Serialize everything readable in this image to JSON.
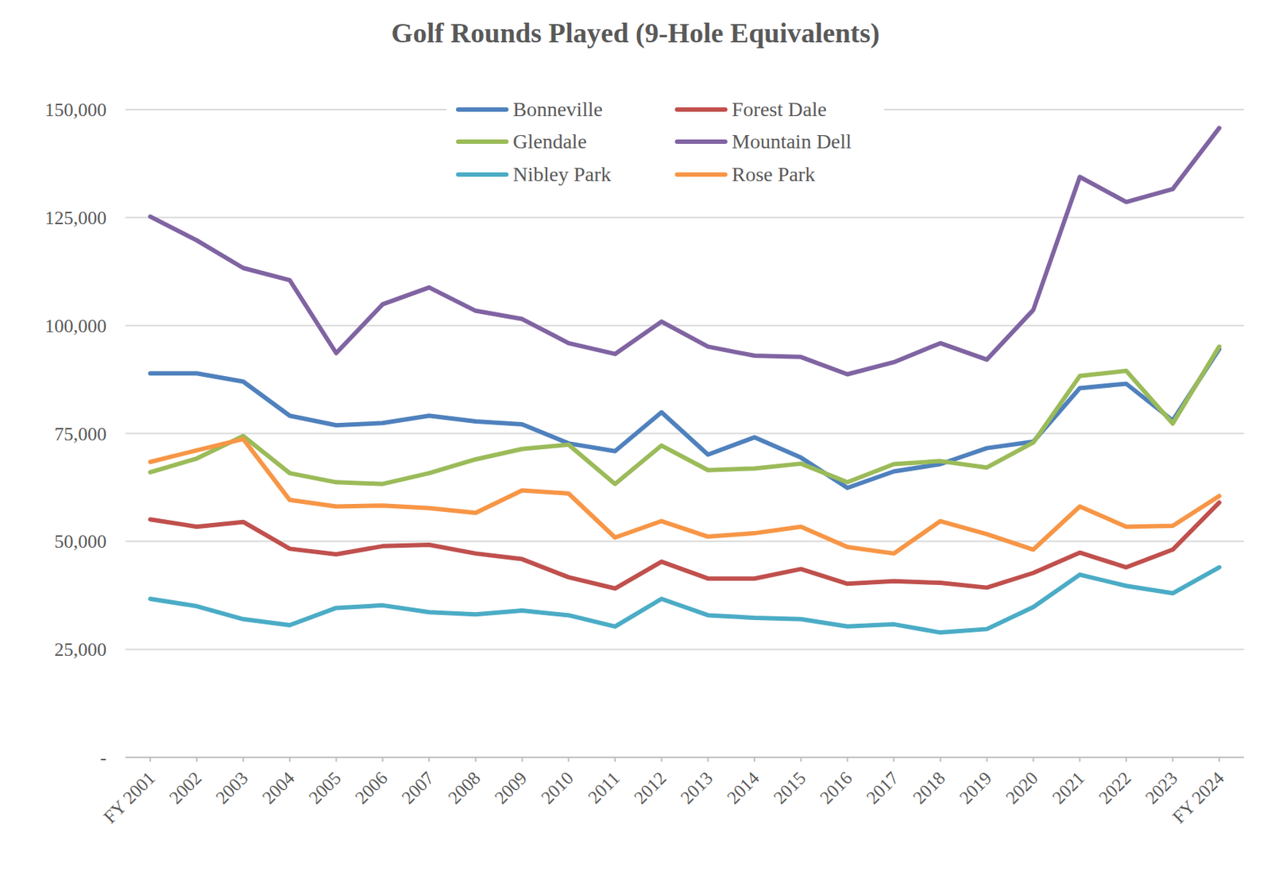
{
  "chart_data": {
    "type": "line",
    "title": "Golf Rounds Played (9-Hole Equivalents)",
    "categories": [
      "FY 2001",
      "2002",
      "2003",
      "2004",
      "2005",
      "2006",
      "2007",
      "2008",
      "2009",
      "2010",
      "2011",
      "2012",
      "2013",
      "2014",
      "2015",
      "2016",
      "2017",
      "2018",
      "2019",
      "2020",
      "2021",
      "2022",
      "2023",
      "FY 2024"
    ],
    "series": [
      {
        "name": "Bonneville",
        "color": "#4f81bd",
        "values": [
          88900,
          88900,
          87000,
          79100,
          76900,
          77400,
          79100,
          77800,
          77100,
          72700,
          70900,
          79900,
          70100,
          74100,
          69400,
          62400,
          66200,
          67900,
          71600,
          73100,
          85500,
          86500,
          78000,
          94500
        ]
      },
      {
        "name": "Forest Dale",
        "color": "#c0504d",
        "values": [
          55100,
          53400,
          54500,
          48300,
          47000,
          48900,
          49200,
          47200,
          45900,
          41700,
          39100,
          45300,
          41400,
          41400,
          43600,
          40200,
          40800,
          40400,
          39300,
          42700,
          47400,
          44000,
          48100,
          59000
        ]
      },
      {
        "name": "Glendale",
        "color": "#9bbb59",
        "values": [
          66000,
          69200,
          74400,
          65800,
          63700,
          63300,
          65800,
          69000,
          71400,
          72400,
          63300,
          72200,
          66500,
          66900,
          68000,
          63700,
          67900,
          68600,
          67100,
          72900,
          88300,
          89500,
          77300,
          95100
        ]
      },
      {
        "name": "Mountain Dell",
        "color": "#8064a2",
        "values": [
          125200,
          119700,
          113300,
          110500,
          93600,
          104900,
          108800,
          103400,
          101500,
          95900,
          93400,
          100900,
          95100,
          93000,
          92700,
          88700,
          91500,
          95900,
          92100,
          103600,
          134400,
          128600,
          131600,
          145700
        ]
      },
      {
        "name": "Nibley Park",
        "color": "#4bacc6",
        "values": [
          36700,
          35000,
          32000,
          30600,
          34600,
          35200,
          33600,
          33100,
          34000,
          32900,
          30300,
          36700,
          32900,
          32300,
          32000,
          30300,
          30800,
          28900,
          29700,
          34800,
          42300,
          39700,
          38000,
          44000
        ]
      },
      {
        "name": "Rose Park",
        "color": "#f79646",
        "values": [
          68400,
          71100,
          73700,
          59600,
          58100,
          58300,
          57700,
          56600,
          61800,
          61100,
          50900,
          54700,
          51100,
          51900,
          53400,
          48700,
          47200,
          54700,
          51700,
          48100,
          58100,
          53400,
          53600,
          60500
        ]
      }
    ],
    "ylim": [
      0,
      150000
    ],
    "yticks": [
      {
        "value": 0,
        "label": "-"
      },
      {
        "value": 25000,
        "label": "25,000"
      },
      {
        "value": 50000,
        "label": "50,000"
      },
      {
        "value": 75000,
        "label": "75,000"
      },
      {
        "value": 100000,
        "label": "100,000"
      },
      {
        "value": 125000,
        "label": "125,000"
      },
      {
        "value": 150000,
        "label": "150,000"
      }
    ],
    "grid": true,
    "legend": "top"
  }
}
